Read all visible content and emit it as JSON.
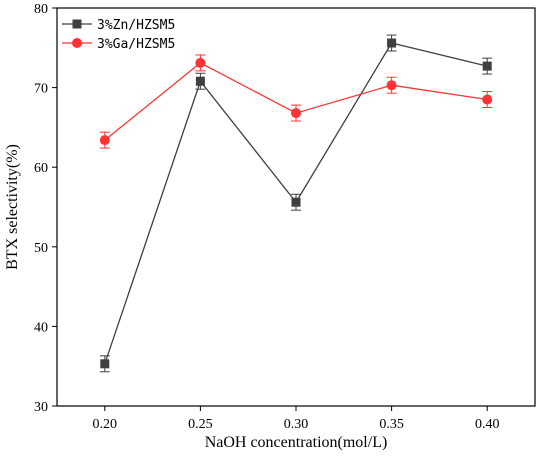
{
  "chart_data": {
    "type": "line",
    "title": "",
    "xlabel": "NaOH concentration(mol/L)",
    "ylabel": "BTX selectivity(%)",
    "categories": [
      "0.20",
      "0.25",
      "0.30",
      "0.35",
      "0.40"
    ],
    "xlim": [
      0.175,
      0.425
    ],
    "ylim": [
      30,
      80
    ],
    "yticks": [
      "30",
      "40",
      "50",
      "60",
      "70",
      "80"
    ],
    "grid": false,
    "legend_position": "top-left",
    "series": [
      {
        "name": "3%Zn/HZSM5",
        "color": "#3f3f3f",
        "marker": "square",
        "values": [
          35.3,
          70.8,
          55.6,
          75.6,
          72.7
        ],
        "errors": [
          1.0,
          1.0,
          1.0,
          1.0,
          1.0
        ]
      },
      {
        "name": "3%Ga/HZSM5",
        "color": "#ff3333",
        "marker": "circle",
        "values": [
          63.4,
          73.1,
          66.8,
          70.3,
          68.5
        ],
        "errors": [
          1.0,
          1.0,
          1.0,
          1.0,
          1.0
        ]
      }
    ]
  }
}
